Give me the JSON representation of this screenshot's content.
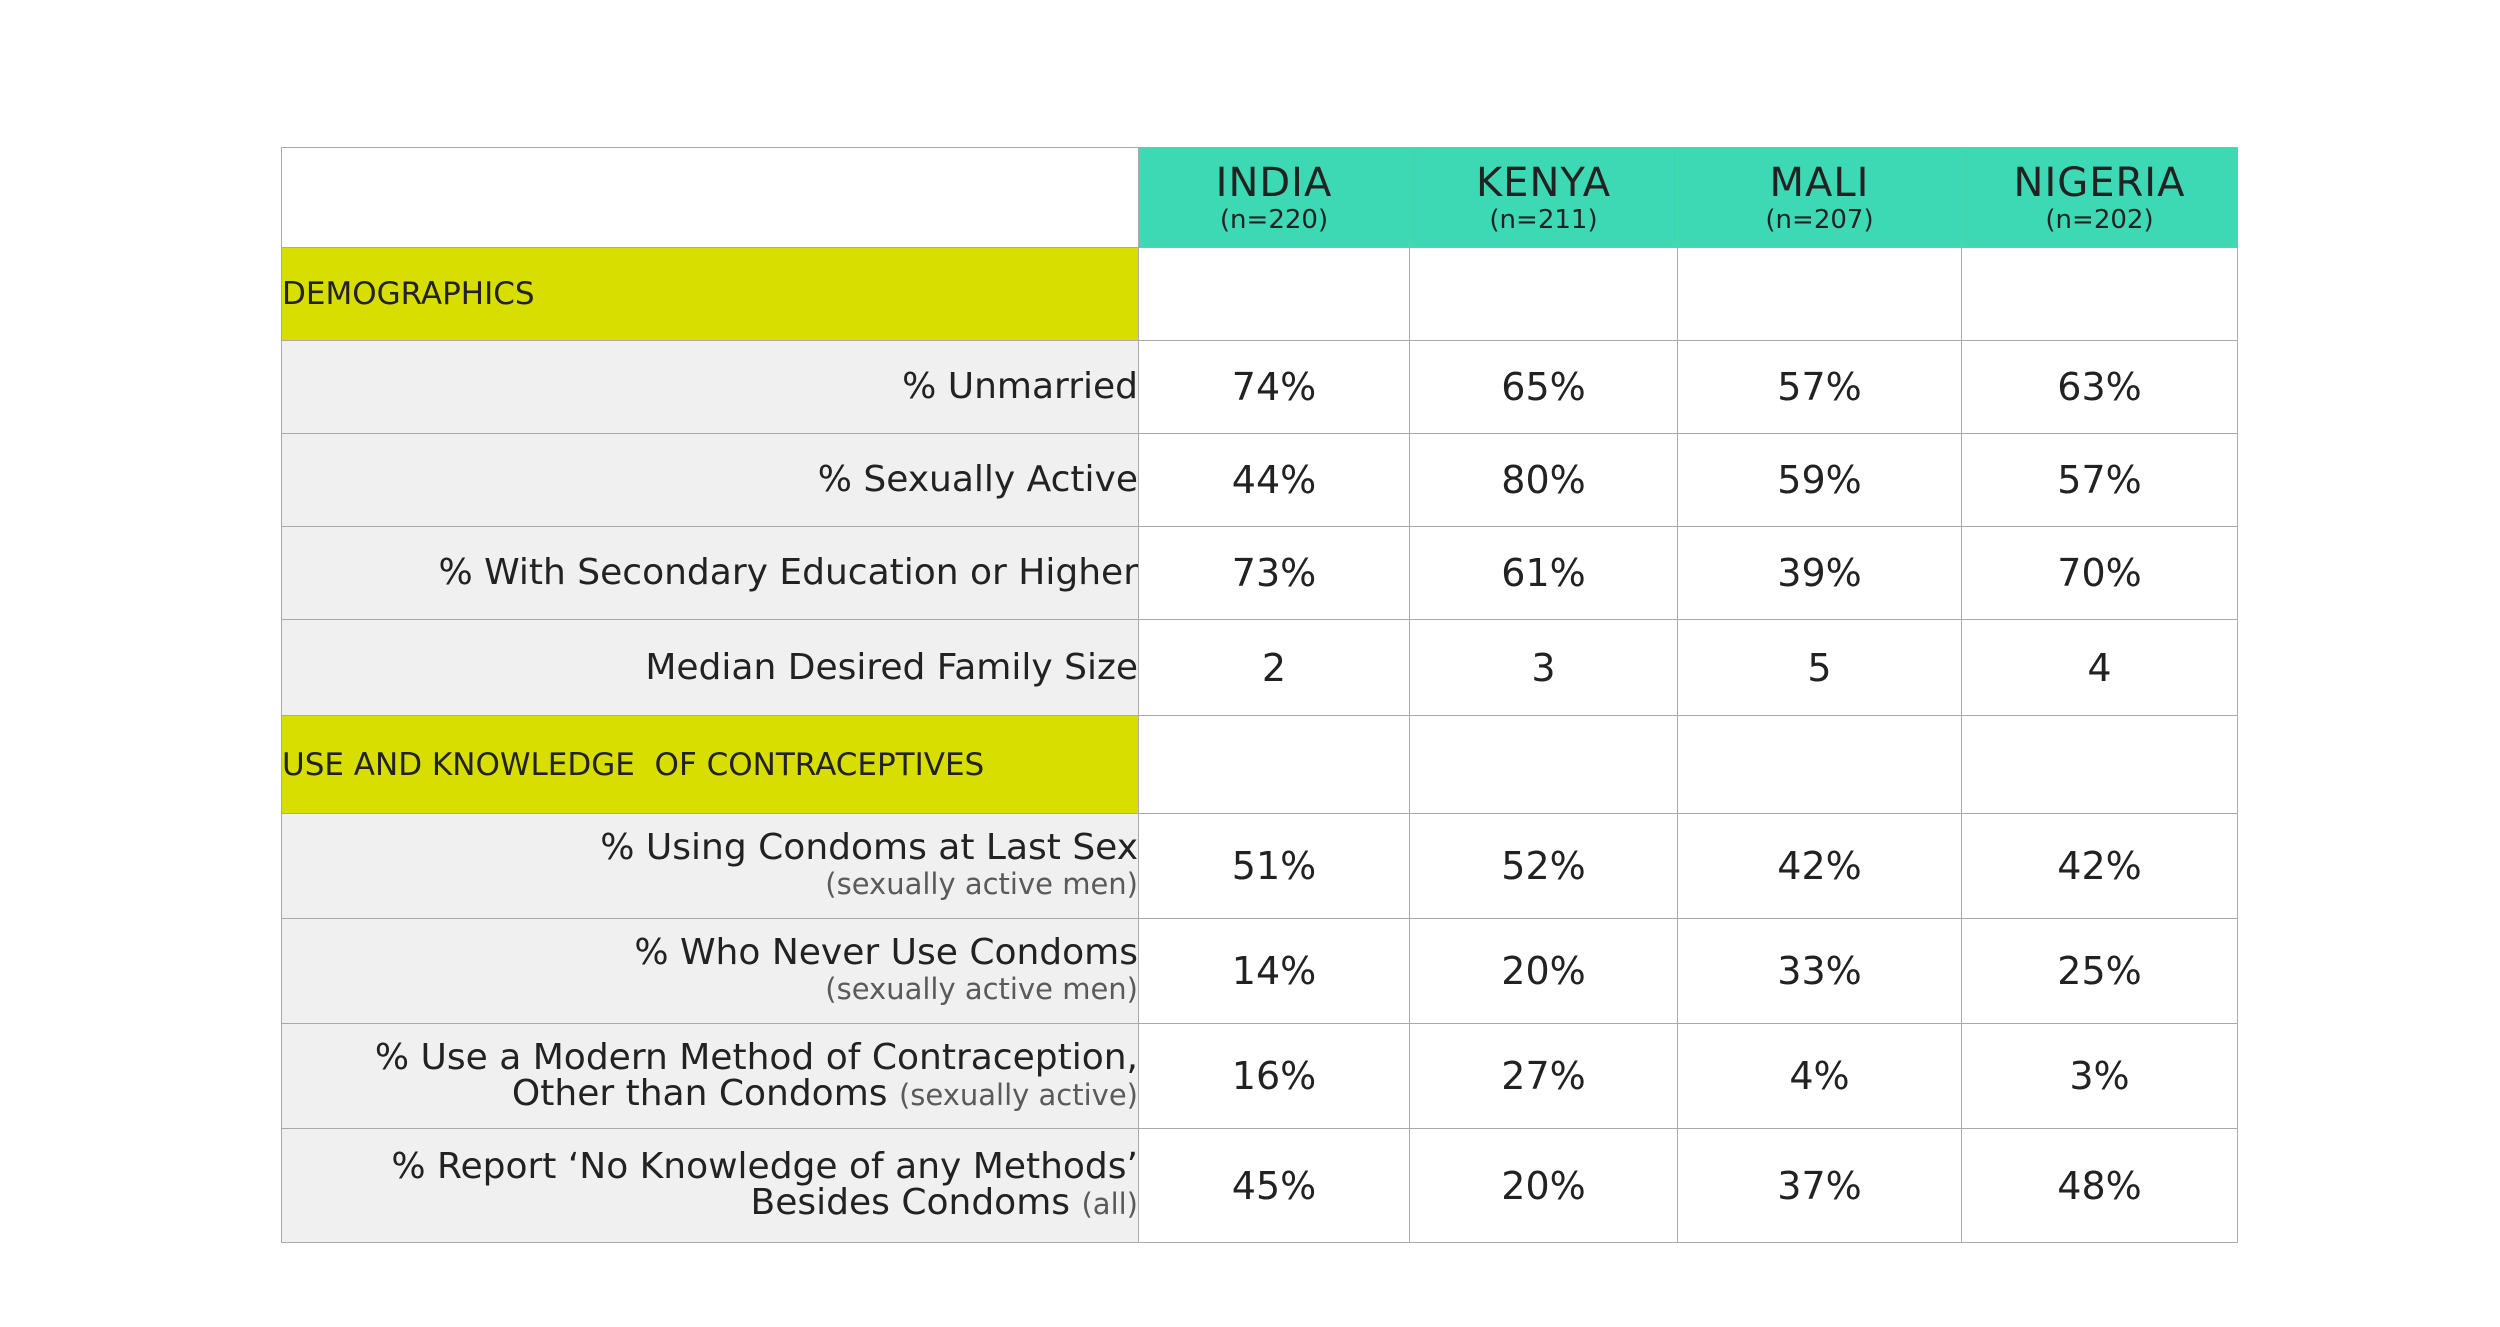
{
  "chart_data": {
    "type": "table",
    "columns": [
      {
        "name": "INDIA",
        "n": "(n=220)"
      },
      {
        "name": "KENYA",
        "n": "(n=211)"
      },
      {
        "name": "MALI",
        "n": "(n=207)"
      },
      {
        "name": "NIGERIA",
        "n": "(n=202)"
      }
    ],
    "sections": [
      {
        "title": "DEMOGRAPHICS",
        "rows": [
          {
            "label": "% Unmarried",
            "values": [
              "74%",
              "65%",
              "57%",
              "63%"
            ]
          },
          {
            "label": "% Sexually Active",
            "values": [
              "44%",
              "80%",
              "59%",
              "57%"
            ]
          },
          {
            "label": "% With Secondary Education or Higher",
            "values": [
              "73%",
              "61%",
              "39%",
              "70%"
            ]
          },
          {
            "label": "Median Desired Family Size",
            "values": [
              "2",
              "3",
              "5",
              "4"
            ]
          }
        ]
      },
      {
        "title": "USE AND KNOWLEDGE  OF CONTRACEPTIVES",
        "rows": [
          {
            "label": "% Using Condoms at Last Sex",
            "note": "(sexually active men)",
            "values": [
              "51%",
              "52%",
              "42%",
              "42%"
            ]
          },
          {
            "label": "% Who Never Use Condoms",
            "note": "(sexually active men)",
            "values": [
              "14%",
              "20%",
              "33%",
              "25%"
            ]
          },
          {
            "label": "% Use a Modern Method of Contraception,",
            "label2": "Other than Condoms",
            "note": "(sexually active)",
            "values": [
              "16%",
              "27%",
              "4%",
              "3%"
            ]
          },
          {
            "label": "% Report ‘No Knowledge of any Methods’",
            "label2": "Besides Condoms",
            "note": "(all)",
            "values": [
              "45%",
              "20%",
              "37%",
              "48%"
            ]
          }
        ]
      }
    ]
  },
  "colors": {
    "header_fill": "#3dd9b4",
    "section_fill": "#d8de00",
    "label_fill": "#f0f0f0",
    "grid": "#a9a9a9"
  }
}
